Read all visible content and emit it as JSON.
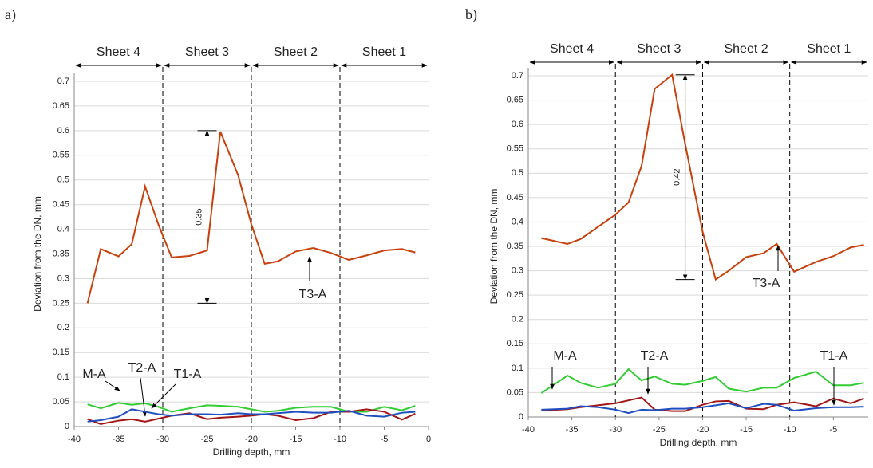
{
  "chart_data": [
    {
      "type": "line",
      "panel_label": "a)",
      "xlabel": "Drilling depth, mm",
      "ylabel": "Deviation from the DN, mm",
      "xlim": [
        -40,
        0
      ],
      "xticks": [
        -40,
        -35,
        -30,
        -25,
        -20,
        -15,
        -10,
        -5,
        0
      ],
      "ylim": [
        0,
        0.7
      ],
      "yticks": [
        0,
        0.05,
        0.1,
        0.15,
        0.2,
        0.25,
        0.3,
        0.35,
        0.4,
        0.45,
        0.5,
        0.55,
        0.6,
        0.65,
        0.7
      ],
      "grid": true,
      "sheets": [
        "Sheet 4",
        "Sheet 3",
        "Sheet 2",
        "Sheet 1"
      ],
      "boundaries": [
        -30,
        -20,
        -10
      ],
      "measure": {
        "label": "0.35",
        "x": -25,
        "from": 0.25,
        "to": 0.6
      },
      "x": [
        -38.5,
        -37,
        -35,
        -33.5,
        -32,
        -30.5,
        -29,
        -27,
        -25,
        -23.5,
        -21.5,
        -20,
        -18.5,
        -17,
        -15,
        -13,
        -11,
        -9,
        -7,
        -5,
        -3,
        -1.5
      ],
      "series": [
        {
          "name": "T3-A",
          "color": "#c8400c",
          "values": [
            0.25,
            0.36,
            0.345,
            0.37,
            0.487,
            0.41,
            0.343,
            0.346,
            0.357,
            0.598,
            0.51,
            0.41,
            0.33,
            0.335,
            0.355,
            0.362,
            0.352,
            0.338,
            0.347,
            0.357,
            0.36,
            0.353
          ]
        },
        {
          "name": "M-A",
          "color": "#33cc33",
          "values": [
            0.045,
            0.037,
            0.048,
            0.044,
            0.047,
            0.04,
            0.03,
            0.037,
            0.043,
            0.042,
            0.04,
            0.035,
            0.03,
            0.032,
            0.038,
            0.04,
            0.04,
            0.03,
            0.03,
            0.04,
            0.033,
            0.042
          ]
        },
        {
          "name": "T2-A",
          "color": "#a31515",
          "values": [
            0.015,
            0.005,
            0.012,
            0.015,
            0.01,
            0.016,
            0.022,
            0.027,
            0.015,
            0.018,
            0.02,
            0.022,
            0.025,
            0.022,
            0.013,
            0.017,
            0.03,
            0.03,
            0.035,
            0.03,
            0.014,
            0.026
          ]
        },
        {
          "name": "T1-A",
          "color": "#1f4fbf",
          "values": [
            0.01,
            0.013,
            0.02,
            0.035,
            0.03,
            0.025,
            0.022,
            0.025,
            0.025,
            0.024,
            0.027,
            0.025,
            0.025,
            0.027,
            0.03,
            0.028,
            0.028,
            0.032,
            0.022,
            0.02,
            0.028,
            0.03
          ]
        }
      ]
    },
    {
      "type": "line",
      "panel_label": "b)",
      "xlabel": "Drilling depth, mm",
      "ylabel": "Deviation from the DN, mm",
      "xlim": [
        -40,
        -1
      ],
      "xticks": [
        -40,
        -35,
        -30,
        -25,
        -20,
        -15,
        -10,
        -5
      ],
      "ylim": [
        0,
        0.7
      ],
      "yticks": [
        0,
        0.05,
        0.1,
        0.15,
        0.2,
        0.25,
        0.3,
        0.35,
        0.4,
        0.45,
        0.5,
        0.55,
        0.6,
        0.65,
        0.7
      ],
      "grid": true,
      "sheets": [
        "Sheet 4",
        "Sheet 3",
        "Sheet 2",
        "Sheet 1"
      ],
      "boundaries": [
        -30,
        -20,
        -10
      ],
      "measure": {
        "label": "0.42",
        "x": -22,
        "from": 0.282,
        "to": 0.702
      },
      "x": [
        -38.5,
        -35.5,
        -34,
        -32,
        -30,
        -28.5,
        -27,
        -25.5,
        -23.5,
        -22,
        -20,
        -18.5,
        -17,
        -15,
        -13,
        -11.5,
        -9.5,
        -7,
        -5,
        -3,
        -1.5
      ],
      "series": [
        {
          "name": "T3-A",
          "color": "#c8400c",
          "values": [
            0.367,
            0.355,
            0.365,
            0.39,
            0.415,
            0.44,
            0.515,
            0.673,
            0.702,
            0.56,
            0.38,
            0.282,
            0.3,
            0.328,
            0.336,
            0.355,
            0.298,
            0.318,
            0.33,
            0.348,
            0.353
          ]
        },
        {
          "name": "M-A",
          "color": "#33cc33",
          "values": [
            0.049,
            0.085,
            0.07,
            0.06,
            0.068,
            0.098,
            0.075,
            0.083,
            0.068,
            0.066,
            0.074,
            0.082,
            0.058,
            0.052,
            0.06,
            0.06,
            0.08,
            0.093,
            0.065,
            0.065,
            0.07
          ]
        },
        {
          "name": "T2-A",
          "color": "#a31515",
          "values": [
            0.013,
            0.016,
            0.02,
            0.024,
            0.028,
            0.034,
            0.04,
            0.015,
            0.012,
            0.012,
            0.025,
            0.032,
            0.033,
            0.017,
            0.016,
            0.025,
            0.03,
            0.022,
            0.038,
            0.028,
            0.038
          ]
        },
        {
          "name": "T1-A",
          "color": "#1f4fbf",
          "values": [
            0.015,
            0.017,
            0.022,
            0.02,
            0.015,
            0.008,
            0.015,
            0.014,
            0.017,
            0.017,
            0.02,
            0.024,
            0.028,
            0.018,
            0.027,
            0.025,
            0.013,
            0.018,
            0.02,
            0.02,
            0.021
          ]
        }
      ]
    }
  ]
}
